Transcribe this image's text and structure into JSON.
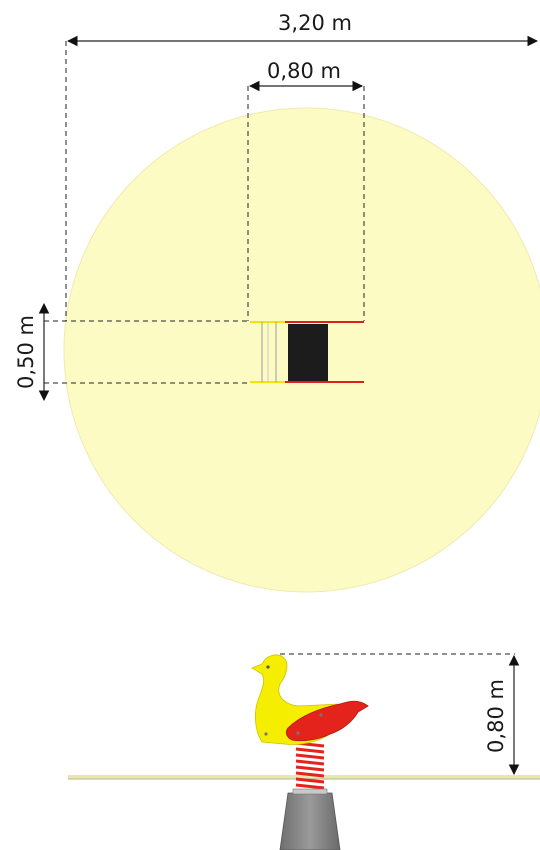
{
  "dimensions": {
    "total_width": "3,20 m",
    "seat_width": "0,80 m",
    "seat_depth": "0,50 m",
    "seat_height": "0,80 m"
  },
  "colors": {
    "safety_zone": "#fdfbc4",
    "seat": "#1c1c1c",
    "rail_yellow": "#f2e500",
    "rail_red": "#e0201b",
    "duck_yellow": "#f5ee00",
    "duck_red": "#e4231c",
    "spring": "#e3231c",
    "base": "#8c8c8c"
  },
  "figure": {
    "top_view": "plan view with circular safety zone",
    "side_view": "spring rocker duck elevation"
  }
}
